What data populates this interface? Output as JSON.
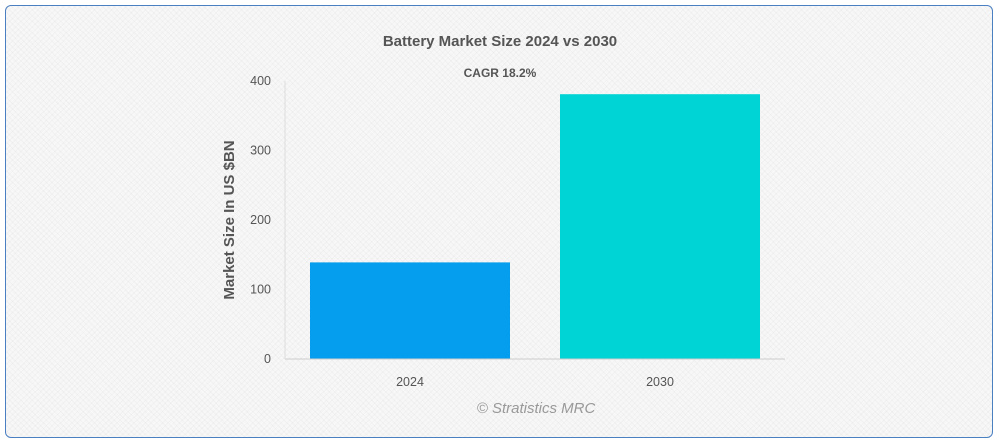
{
  "chart_data": {
    "type": "bar",
    "title": "Battery Market Size 2024 vs 2030",
    "subtitle": "CAGR 18.2%",
    "xlabel": "",
    "ylabel": "Market Size In US $BN",
    "categories": [
      "2024",
      "2030"
    ],
    "values": [
      139,
      381
    ],
    "ylim": [
      0,
      400
    ],
    "yticks": [
      0,
      100,
      200,
      300,
      400
    ],
    "bar_colors": [
      "#059ded",
      "#00d4d4"
    ],
    "grid": false,
    "legend": "none"
  },
  "credit": "© Stratistics MRC"
}
